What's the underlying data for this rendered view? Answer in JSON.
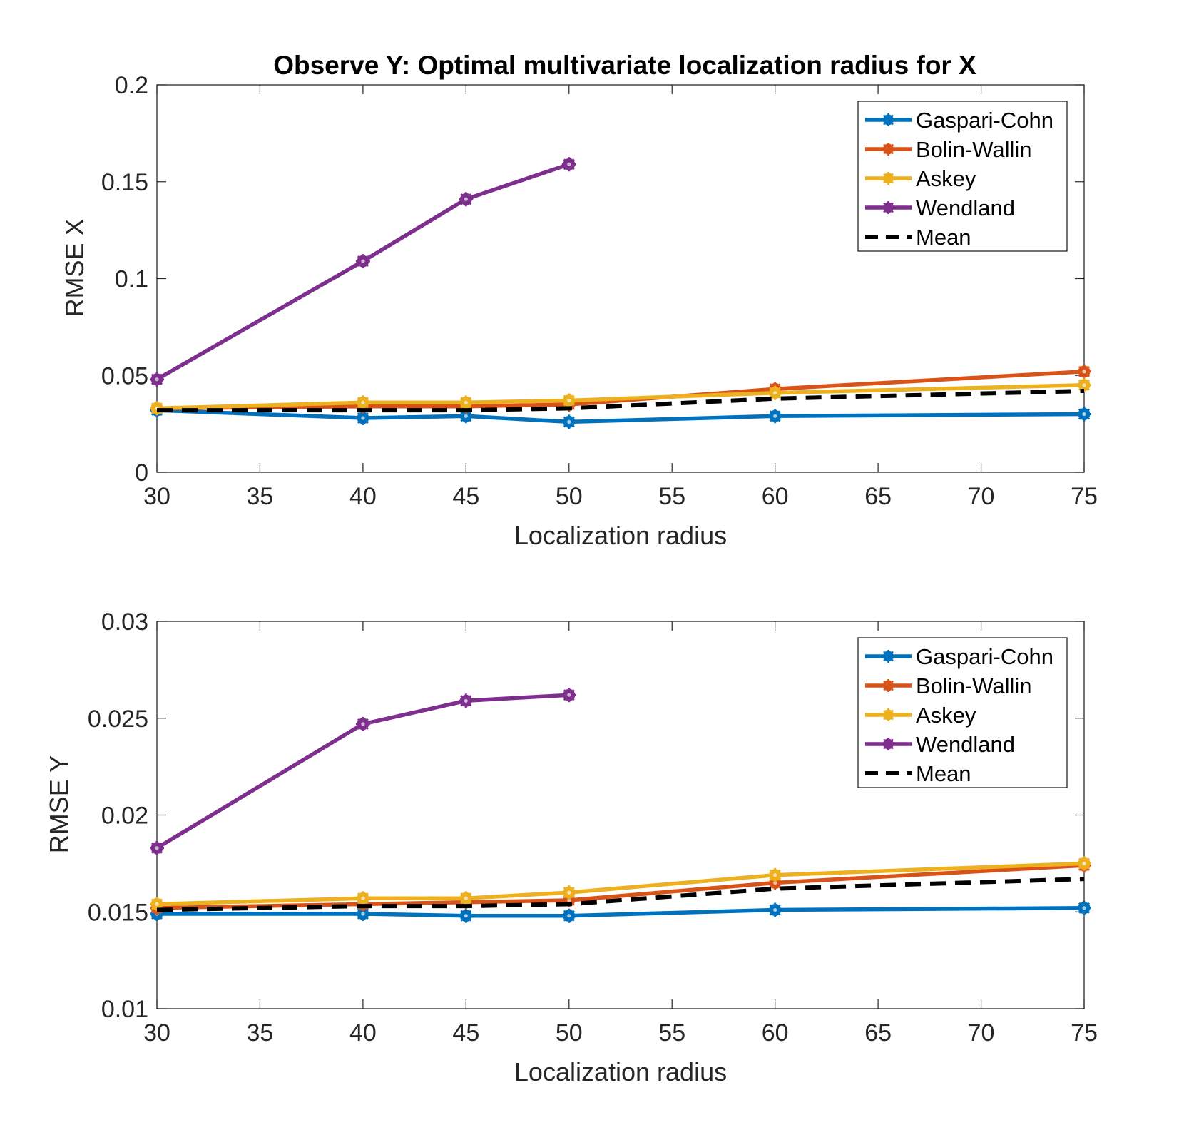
{
  "chart_data": [
    {
      "type": "line",
      "title": "Observe Y: Optimal multivariate localization radius for X",
      "xlabel": "Localization radius",
      "ylabel": "RMSE X",
      "xlim": [
        30,
        75
      ],
      "ylim": [
        0,
        0.2
      ],
      "xticks": [
        30,
        35,
        40,
        45,
        50,
        55,
        60,
        65,
        70,
        75
      ],
      "yticks": [
        0,
        0.05,
        0.1,
        0.15,
        0.2
      ],
      "ytick_labels": [
        "0",
        "0.05",
        "0.1",
        "0.15",
        "0.2"
      ],
      "grid": false,
      "legend_position": "top-right",
      "series": [
        {
          "name": "Gaspari-Cohn",
          "color": "#0072BD",
          "marker": "star",
          "x": [
            30,
            40,
            45,
            50,
            60,
            75
          ],
          "y": [
            0.032,
            0.028,
            0.029,
            0.026,
            0.029,
            0.03
          ]
        },
        {
          "name": "Bolin-Wallin",
          "color": "#D95319",
          "marker": "star",
          "x": [
            30,
            40,
            45,
            50,
            60,
            75
          ],
          "y": [
            0.033,
            0.034,
            0.034,
            0.035,
            0.043,
            0.052
          ]
        },
        {
          "name": "Askey",
          "color": "#EDB120",
          "marker": "star",
          "x": [
            30,
            40,
            45,
            50,
            60,
            75
          ],
          "y": [
            0.033,
            0.036,
            0.036,
            0.037,
            0.041,
            0.045
          ]
        },
        {
          "name": "Wendland",
          "color": "#7E2F8E",
          "marker": "star",
          "x": [
            30,
            40,
            45,
            50
          ],
          "y": [
            0.048,
            0.109,
            0.141,
            0.159
          ]
        },
        {
          "name": "Mean",
          "color": "#000000",
          "dashed": true,
          "x": [
            30,
            40,
            45,
            50,
            60,
            75
          ],
          "y": [
            0.032,
            0.032,
            0.032,
            0.033,
            0.038,
            0.042
          ]
        }
      ]
    },
    {
      "type": "line",
      "title": "",
      "xlabel": "Localization radius",
      "ylabel": "RMSE Y",
      "xlim": [
        30,
        75
      ],
      "ylim": [
        0.01,
        0.03
      ],
      "xticks": [
        30,
        35,
        40,
        45,
        50,
        55,
        60,
        65,
        70,
        75
      ],
      "yticks": [
        0.01,
        0.015,
        0.02,
        0.025,
        0.03
      ],
      "ytick_labels": [
        "0.01",
        "0.015",
        "0.02",
        "0.025",
        "0.03"
      ],
      "grid": false,
      "legend_position": "top-right",
      "series": [
        {
          "name": "Gaspari-Cohn",
          "color": "#0072BD",
          "marker": "star",
          "x": [
            30,
            40,
            45,
            50,
            60,
            75
          ],
          "y": [
            0.0149,
            0.0149,
            0.0148,
            0.0148,
            0.0151,
            0.0152
          ]
        },
        {
          "name": "Bolin-Wallin",
          "color": "#D95319",
          "marker": "star",
          "x": [
            30,
            40,
            45,
            50,
            60,
            75
          ],
          "y": [
            0.0152,
            0.0154,
            0.0155,
            0.0156,
            0.0165,
            0.0174
          ]
        },
        {
          "name": "Askey",
          "color": "#EDB120",
          "marker": "star",
          "x": [
            30,
            40,
            45,
            50,
            60,
            75
          ],
          "y": [
            0.0154,
            0.0157,
            0.0157,
            0.016,
            0.0169,
            0.0175
          ]
        },
        {
          "name": "Wendland",
          "color": "#7E2F8E",
          "marker": "star",
          "x": [
            30,
            40,
            45,
            50
          ],
          "y": [
            0.0183,
            0.0247,
            0.0259,
            0.0262
          ]
        },
        {
          "name": "Mean",
          "color": "#000000",
          "dashed": true,
          "x": [
            30,
            40,
            45,
            50,
            60,
            75
          ],
          "y": [
            0.0151,
            0.0153,
            0.0153,
            0.0154,
            0.0162,
            0.0167
          ]
        }
      ]
    }
  ]
}
